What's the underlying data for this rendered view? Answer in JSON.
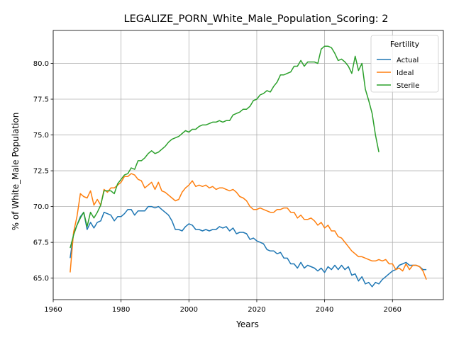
{
  "chart_data": {
    "type": "line",
    "title": "LEGALIZE_PORN_White_Male_Population_Scoring: 2",
    "xlabel": "Years",
    "ylabel": "% of White_Male Population",
    "xlim": [
      1960,
      2075
    ],
    "ylim": [
      63.5,
      82.3
    ],
    "x_ticks": [
      1960,
      1980,
      2000,
      2020,
      2040,
      2060
    ],
    "y_ticks": [
      65.0,
      67.5,
      70.0,
      72.5,
      75.0,
      77.5,
      80.0
    ],
    "grid": true,
    "legend": {
      "title": "Fertility",
      "position": "top-right"
    },
    "series": [
      {
        "name": "Actual",
        "color": "#1f77b4",
        "points": [
          [
            1965,
            66.4
          ],
          [
            1966,
            68.1
          ],
          [
            1967,
            68.7
          ],
          [
            1968,
            69.3
          ],
          [
            1969,
            69.6
          ],
          [
            1970,
            68.4
          ],
          [
            1971,
            68.9
          ],
          [
            1972,
            68.5
          ],
          [
            1973,
            68.9
          ],
          [
            1974,
            69.0
          ],
          [
            1975,
            69.6
          ],
          [
            1976,
            69.5
          ],
          [
            1977,
            69.4
          ],
          [
            1978,
            69.0
          ],
          [
            1979,
            69.3
          ],
          [
            1980,
            69.3
          ],
          [
            1981,
            69.5
          ],
          [
            1982,
            69.8
          ],
          [
            1983,
            69.8
          ],
          [
            1984,
            69.4
          ],
          [
            1985,
            69.7
          ],
          [
            1986,
            69.7
          ],
          [
            1987,
            69.7
          ],
          [
            1988,
            70.0
          ],
          [
            1989,
            70.0
          ],
          [
            1990,
            69.9
          ],
          [
            1991,
            70.0
          ],
          [
            1992,
            69.8
          ],
          [
            1993,
            69.6
          ],
          [
            1994,
            69.4
          ],
          [
            1995,
            69.0
          ],
          [
            1996,
            68.4
          ],
          [
            1997,
            68.4
          ],
          [
            1998,
            68.3
          ],
          [
            1999,
            68.6
          ],
          [
            2000,
            68.8
          ],
          [
            2001,
            68.7
          ],
          [
            2002,
            68.4
          ],
          [
            2003,
            68.4
          ],
          [
            2004,
            68.3
          ],
          [
            2005,
            68.4
          ],
          [
            2006,
            68.3
          ],
          [
            2007,
            68.4
          ],
          [
            2008,
            68.4
          ],
          [
            2009,
            68.6
          ],
          [
            2010,
            68.5
          ],
          [
            2011,
            68.6
          ],
          [
            2012,
            68.3
          ],
          [
            2013,
            68.5
          ],
          [
            2014,
            68.1
          ],
          [
            2015,
            68.2
          ],
          [
            2016,
            68.2
          ],
          [
            2017,
            68.1
          ],
          [
            2018,
            67.7
          ],
          [
            2019,
            67.8
          ],
          [
            2020,
            67.6
          ],
          [
            2021,
            67.5
          ],
          [
            2022,
            67.4
          ],
          [
            2023,
            67.0
          ],
          [
            2024,
            66.9
          ],
          [
            2025,
            66.9
          ],
          [
            2026,
            66.7
          ],
          [
            2027,
            66.8
          ],
          [
            2028,
            66.4
          ],
          [
            2029,
            66.4
          ],
          [
            2030,
            66.0
          ],
          [
            2031,
            66.0
          ],
          [
            2032,
            65.7
          ],
          [
            2033,
            66.1
          ],
          [
            2034,
            65.7
          ],
          [
            2035,
            65.9
          ],
          [
            2036,
            65.8
          ],
          [
            2037,
            65.7
          ],
          [
            2038,
            65.5
          ],
          [
            2039,
            65.7
          ],
          [
            2040,
            65.4
          ],
          [
            2041,
            65.8
          ],
          [
            2042,
            65.6
          ],
          [
            2043,
            65.9
          ],
          [
            2044,
            65.6
          ],
          [
            2045,
            65.9
          ],
          [
            2046,
            65.6
          ],
          [
            2047,
            65.8
          ],
          [
            2048,
            65.2
          ],
          [
            2049,
            65.3
          ],
          [
            2050,
            64.8
          ],
          [
            2051,
            65.1
          ],
          [
            2052,
            64.6
          ],
          [
            2053,
            64.7
          ],
          [
            2054,
            64.4
          ],
          [
            2055,
            64.7
          ],
          [
            2056,
            64.6
          ],
          [
            2057,
            64.9
          ],
          [
            2058,
            65.1
          ],
          [
            2059,
            65.3
          ],
          [
            2060,
            65.5
          ],
          [
            2061,
            65.6
          ],
          [
            2062,
            65.9
          ],
          [
            2063,
            66.0
          ],
          [
            2064,
            66.1
          ],
          [
            2065,
            65.9
          ],
          [
            2066,
            65.9
          ],
          [
            2067,
            65.9
          ],
          [
            2068,
            65.8
          ],
          [
            2069,
            65.6
          ],
          [
            2070,
            65.6
          ]
        ]
      },
      {
        "name": "Ideal",
        "color": "#ff7f0e",
        "points": [
          [
            1965,
            65.4
          ],
          [
            1966,
            68.2
          ],
          [
            1967,
            69.3
          ],
          [
            1968,
            70.9
          ],
          [
            1969,
            70.7
          ],
          [
            1970,
            70.6
          ],
          [
            1971,
            71.1
          ],
          [
            1972,
            70.1
          ],
          [
            1973,
            70.5
          ],
          [
            1974,
            70.1
          ],
          [
            1975,
            71.2
          ],
          [
            1976,
            71.0
          ],
          [
            1977,
            71.3
          ],
          [
            1978,
            71.3
          ],
          [
            1979,
            71.5
          ],
          [
            1980,
            71.7
          ],
          [
            1981,
            72.1
          ],
          [
            1982,
            72.1
          ],
          [
            1983,
            72.3
          ],
          [
            1984,
            72.2
          ],
          [
            1985,
            71.9
          ],
          [
            1986,
            71.8
          ],
          [
            1987,
            71.3
          ],
          [
            1988,
            71.5
          ],
          [
            1989,
            71.7
          ],
          [
            1990,
            71.2
          ],
          [
            1991,
            71.7
          ],
          [
            1992,
            71.1
          ],
          [
            1993,
            71.0
          ],
          [
            1994,
            70.8
          ],
          [
            1995,
            70.6
          ],
          [
            1996,
            70.4
          ],
          [
            1997,
            70.5
          ],
          [
            1998,
            71.0
          ],
          [
            1999,
            71.3
          ],
          [
            2000,
            71.5
          ],
          [
            2001,
            71.8
          ],
          [
            2002,
            71.4
          ],
          [
            2003,
            71.5
          ],
          [
            2004,
            71.4
          ],
          [
            2005,
            71.5
          ],
          [
            2006,
            71.3
          ],
          [
            2007,
            71.4
          ],
          [
            2008,
            71.2
          ],
          [
            2009,
            71.3
          ],
          [
            2010,
            71.3
          ],
          [
            2011,
            71.2
          ],
          [
            2012,
            71.1
          ],
          [
            2013,
            71.2
          ],
          [
            2014,
            71.0
          ],
          [
            2015,
            70.7
          ],
          [
            2016,
            70.6
          ],
          [
            2017,
            70.4
          ],
          [
            2018,
            70.0
          ],
          [
            2019,
            69.8
          ],
          [
            2020,
            69.8
          ],
          [
            2021,
            69.9
          ],
          [
            2022,
            69.8
          ],
          [
            2023,
            69.7
          ],
          [
            2024,
            69.6
          ],
          [
            2025,
            69.6
          ],
          [
            2026,
            69.8
          ],
          [
            2027,
            69.8
          ],
          [
            2028,
            69.9
          ],
          [
            2029,
            69.9
          ],
          [
            2030,
            69.6
          ],
          [
            2031,
            69.6
          ],
          [
            2032,
            69.2
          ],
          [
            2033,
            69.4
          ],
          [
            2034,
            69.1
          ],
          [
            2035,
            69.1
          ],
          [
            2036,
            69.2
          ],
          [
            2037,
            69.0
          ],
          [
            2038,
            68.7
          ],
          [
            2039,
            68.9
          ],
          [
            2040,
            68.5
          ],
          [
            2041,
            68.7
          ],
          [
            2042,
            68.3
          ],
          [
            2043,
            68.3
          ],
          [
            2044,
            67.9
          ],
          [
            2045,
            67.8
          ],
          [
            2046,
            67.5
          ],
          [
            2047,
            67.2
          ],
          [
            2048,
            66.9
          ],
          [
            2049,
            66.7
          ],
          [
            2050,
            66.5
          ],
          [
            2051,
            66.5
          ],
          [
            2052,
            66.4
          ],
          [
            2053,
            66.3
          ],
          [
            2054,
            66.2
          ],
          [
            2055,
            66.2
          ],
          [
            2056,
            66.3
          ],
          [
            2057,
            66.2
          ],
          [
            2058,
            66.3
          ],
          [
            2059,
            66.0
          ],
          [
            2060,
            66.0
          ],
          [
            2061,
            65.6
          ],
          [
            2062,
            65.7
          ],
          [
            2063,
            65.5
          ],
          [
            2064,
            66.0
          ],
          [
            2065,
            65.6
          ],
          [
            2066,
            65.9
          ],
          [
            2067,
            65.9
          ],
          [
            2068,
            65.8
          ],
          [
            2069,
            65.5
          ],
          [
            2070,
            64.9
          ]
        ]
      },
      {
        "name": "Sterile",
        "color": "#2ca02c",
        "points": [
          [
            1965,
            67.1
          ],
          [
            1966,
            68.0
          ],
          [
            1967,
            68.7
          ],
          [
            1968,
            69.2
          ],
          [
            1969,
            69.6
          ],
          [
            1970,
            68.6
          ],
          [
            1971,
            69.6
          ],
          [
            1972,
            69.2
          ],
          [
            1973,
            69.6
          ],
          [
            1974,
            70.1
          ],
          [
            1975,
            71.1
          ],
          [
            1976,
            71.1
          ],
          [
            1977,
            71.1
          ],
          [
            1978,
            70.9
          ],
          [
            1979,
            71.6
          ],
          [
            1980,
            71.9
          ],
          [
            1981,
            72.2
          ],
          [
            1982,
            72.3
          ],
          [
            1983,
            72.7
          ],
          [
            1984,
            72.6
          ],
          [
            1985,
            73.2
          ],
          [
            1986,
            73.2
          ],
          [
            1987,
            73.4
          ],
          [
            1988,
            73.7
          ],
          [
            1989,
            73.9
          ],
          [
            1990,
            73.7
          ],
          [
            1991,
            73.8
          ],
          [
            1992,
            74.0
          ],
          [
            1993,
            74.2
          ],
          [
            1994,
            74.5
          ],
          [
            1995,
            74.7
          ],
          [
            1996,
            74.8
          ],
          [
            1997,
            74.9
          ],
          [
            1998,
            75.1
          ],
          [
            1999,
            75.3
          ],
          [
            2000,
            75.2
          ],
          [
            2001,
            75.4
          ],
          [
            2002,
            75.4
          ],
          [
            2003,
            75.6
          ],
          [
            2004,
            75.7
          ],
          [
            2005,
            75.7
          ],
          [
            2006,
            75.8
          ],
          [
            2007,
            75.9
          ],
          [
            2008,
            75.9
          ],
          [
            2009,
            76.0
          ],
          [
            2010,
            75.9
          ],
          [
            2011,
            76.0
          ],
          [
            2012,
            76.0
          ],
          [
            2013,
            76.4
          ],
          [
            2014,
            76.5
          ],
          [
            2015,
            76.6
          ],
          [
            2016,
            76.8
          ],
          [
            2017,
            76.8
          ],
          [
            2018,
            77.0
          ],
          [
            2019,
            77.4
          ],
          [
            2020,
            77.5
          ],
          [
            2021,
            77.8
          ],
          [
            2022,
            77.9
          ],
          [
            2023,
            78.1
          ],
          [
            2024,
            78.0
          ],
          [
            2025,
            78.4
          ],
          [
            2026,
            78.7
          ],
          [
            2027,
            79.2
          ],
          [
            2028,
            79.2
          ],
          [
            2029,
            79.3
          ],
          [
            2030,
            79.4
          ],
          [
            2031,
            79.8
          ],
          [
            2032,
            79.8
          ],
          [
            2033,
            80.2
          ],
          [
            2034,
            79.8
          ],
          [
            2035,
            80.1
          ],
          [
            2036,
            80.1
          ],
          [
            2037,
            80.1
          ],
          [
            2038,
            80.0
          ],
          [
            2039,
            81.0
          ],
          [
            2040,
            81.2
          ],
          [
            2041,
            81.2
          ],
          [
            2042,
            81.1
          ],
          [
            2043,
            80.7
          ],
          [
            2044,
            80.2
          ],
          [
            2045,
            80.3
          ],
          [
            2046,
            80.1
          ],
          [
            2047,
            79.8
          ],
          [
            2048,
            79.3
          ],
          [
            2049,
            80.5
          ],
          [
            2050,
            79.5
          ],
          [
            2051,
            80.0
          ],
          [
            2052,
            78.2
          ],
          [
            2053,
            77.4
          ],
          [
            2054,
            76.5
          ],
          [
            2055,
            75.0
          ],
          [
            2056,
            73.8
          ]
        ]
      }
    ]
  }
}
